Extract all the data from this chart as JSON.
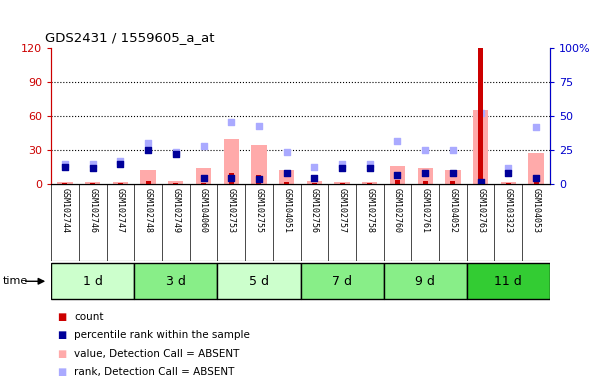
{
  "title": "GDS2431 / 1559605_a_at",
  "samples": [
    "GSM102744",
    "GSM102746",
    "GSM102747",
    "GSM102748",
    "GSM102749",
    "GSM104060",
    "GSM102753",
    "GSM102755",
    "GSM104051",
    "GSM102756",
    "GSM102757",
    "GSM102758",
    "GSM102760",
    "GSM102761",
    "GSM104052",
    "GSM102763",
    "GSM103323",
    "GSM104053"
  ],
  "time_groups": [
    {
      "label": "1 d",
      "start": 0,
      "end": 3,
      "color": "#ccffcc"
    },
    {
      "label": "3 d",
      "start": 3,
      "end": 6,
      "color": "#88ee88"
    },
    {
      "label": "5 d",
      "start": 6,
      "end": 9,
      "color": "#ccffcc"
    },
    {
      "label": "7 d",
      "start": 9,
      "end": 12,
      "color": "#88ee88"
    },
    {
      "label": "9 d",
      "start": 12,
      "end": 15,
      "color": "#88ee88"
    },
    {
      "label": "11 d",
      "start": 15,
      "end": 18,
      "color": "#33cc33"
    }
  ],
  "count_values": [
    1,
    1,
    1,
    3,
    1,
    1,
    10,
    8,
    2,
    1,
    1,
    1,
    4,
    3,
    3,
    120,
    1,
    8
  ],
  "percentile_values": [
    13,
    12,
    15,
    25,
    22,
    5,
    5,
    4,
    8,
    5,
    12,
    12,
    7,
    8,
    8,
    2,
    8,
    5
  ],
  "absent_value_bars": [
    2,
    2,
    2,
    13,
    3,
    14,
    40,
    35,
    13,
    3,
    2,
    2,
    16,
    14,
    13,
    65,
    2,
    28
  ],
  "absent_rank_values": [
    15,
    15,
    17,
    30,
    24,
    28,
    46,
    43,
    24,
    13,
    15,
    15,
    32,
    25,
    25,
    52,
    12,
    42
  ],
  "ylim_left": [
    0,
    120
  ],
  "ylim_right": [
    0,
    100
  ],
  "yticks_left": [
    0,
    30,
    60,
    90,
    120
  ],
  "yticks_right": [
    0,
    25,
    50,
    75,
    100
  ],
  "ytick_labels_left": [
    "0",
    "30",
    "60",
    "90",
    "120"
  ],
  "ytick_labels_right": [
    "0",
    "25",
    "50",
    "75",
    "100%"
  ],
  "count_color": "#cc0000",
  "percentile_color": "#000099",
  "absent_bar_color": "#ffaaaa",
  "absent_rank_color": "#aaaaff",
  "bg_color": "#ffffff",
  "sample_bg": "#cccccc"
}
